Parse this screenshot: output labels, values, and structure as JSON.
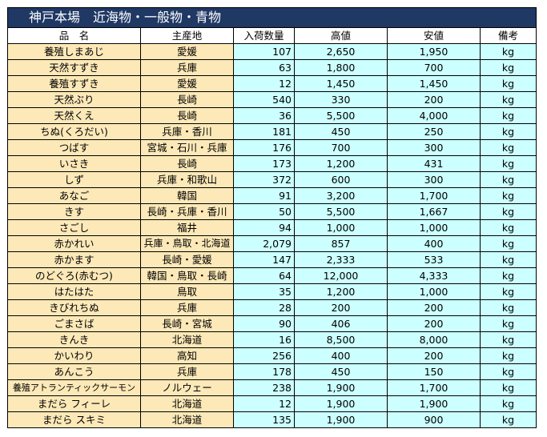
{
  "title": "神戸本場　近海物・一般物・青物",
  "headers": [
    "品　名",
    "主産地",
    "入荷数量",
    "高値",
    "安値",
    "備考"
  ],
  "rows": [
    {
      "name": "養殖しまあじ",
      "origin": "愛媛",
      "qty": "107",
      "high": "2,650",
      "low": "1,950",
      "unit": "kg"
    },
    {
      "name": "天然すずき",
      "origin": "兵庫",
      "qty": "63",
      "high": "1,800",
      "low": "700",
      "unit": "kg"
    },
    {
      "name": "養殖すずき",
      "origin": "愛媛",
      "qty": "12",
      "high": "1,450",
      "low": "1,450",
      "unit": "kg"
    },
    {
      "name": "天然ぶり",
      "origin": "長崎",
      "qty": "540",
      "high": "330",
      "low": "200",
      "unit": "kg"
    },
    {
      "name": "天然くえ",
      "origin": "長崎",
      "qty": "36",
      "high": "5,500",
      "low": "4,000",
      "unit": "kg"
    },
    {
      "name": "ちぬ(くろだい)",
      "origin": "兵庫・香川",
      "qty": "181",
      "high": "450",
      "low": "250",
      "unit": "kg"
    },
    {
      "name": "つばす",
      "origin": "宮城・石川・兵庫",
      "qty": "176",
      "high": "700",
      "low": "300",
      "unit": "kg"
    },
    {
      "name": "いさき",
      "origin": "長崎",
      "qty": "173",
      "high": "1,200",
      "low": "431",
      "unit": "kg"
    },
    {
      "name": "しず",
      "origin": "兵庫・和歌山",
      "qty": "372",
      "high": "600",
      "low": "300",
      "unit": "kg"
    },
    {
      "name": "あなご",
      "origin": "韓国",
      "qty": "91",
      "high": "3,200",
      "low": "1,700",
      "unit": "kg"
    },
    {
      "name": "きす",
      "origin": "長崎・兵庫・香川",
      "qty": "50",
      "high": "5,500",
      "low": "1,667",
      "unit": "kg"
    },
    {
      "name": "さごし",
      "origin": "福井",
      "qty": "94",
      "high": "1,000",
      "low": "1,000",
      "unit": "kg"
    },
    {
      "name": "赤かれい",
      "origin": "兵庫・鳥取・北海道",
      "qty": "2,079",
      "high": "857",
      "low": "400",
      "unit": "kg"
    },
    {
      "name": "赤かます",
      "origin": "長崎・愛媛",
      "qty": "147",
      "high": "2,333",
      "low": "533",
      "unit": "kg"
    },
    {
      "name": "のどぐろ(赤むつ)",
      "origin": "韓国・鳥取・長崎",
      "qty": "64",
      "high": "12,000",
      "low": "4,333",
      "unit": "kg"
    },
    {
      "name": "はたはた",
      "origin": "鳥取",
      "qty": "35",
      "high": "1,200",
      "low": "1,000",
      "unit": "kg"
    },
    {
      "name": "きびれちぬ",
      "origin": "兵庫",
      "qty": "28",
      "high": "200",
      "low": "200",
      "unit": "kg"
    },
    {
      "name": "ごまさば",
      "origin": "長崎・宮城",
      "qty": "90",
      "high": "406",
      "low": "200",
      "unit": "kg"
    },
    {
      "name": "きんき",
      "origin": "北海道",
      "qty": "16",
      "high": "8,500",
      "low": "8,000",
      "unit": "kg"
    },
    {
      "name": "かいわり",
      "origin": "高知",
      "qty": "256",
      "high": "400",
      "low": "200",
      "unit": "kg"
    },
    {
      "name": "あんこう",
      "origin": "兵庫",
      "qty": "178",
      "high": "450",
      "low": "150",
      "unit": "kg"
    },
    {
      "name": "養殖アトランティックサーモン",
      "origin": "ノルウェー",
      "qty": "238",
      "high": "1,900",
      "low": "1,700",
      "unit": "kg"
    },
    {
      "name": "まだら フィーレ",
      "origin": "北海道",
      "qty": "12",
      "high": "1,900",
      "low": "1,900",
      "unit": "kg"
    },
    {
      "name": "まだら スキミ",
      "origin": "北海道",
      "qty": "135",
      "high": "1,900",
      "low": "900",
      "unit": "kg"
    }
  ]
}
